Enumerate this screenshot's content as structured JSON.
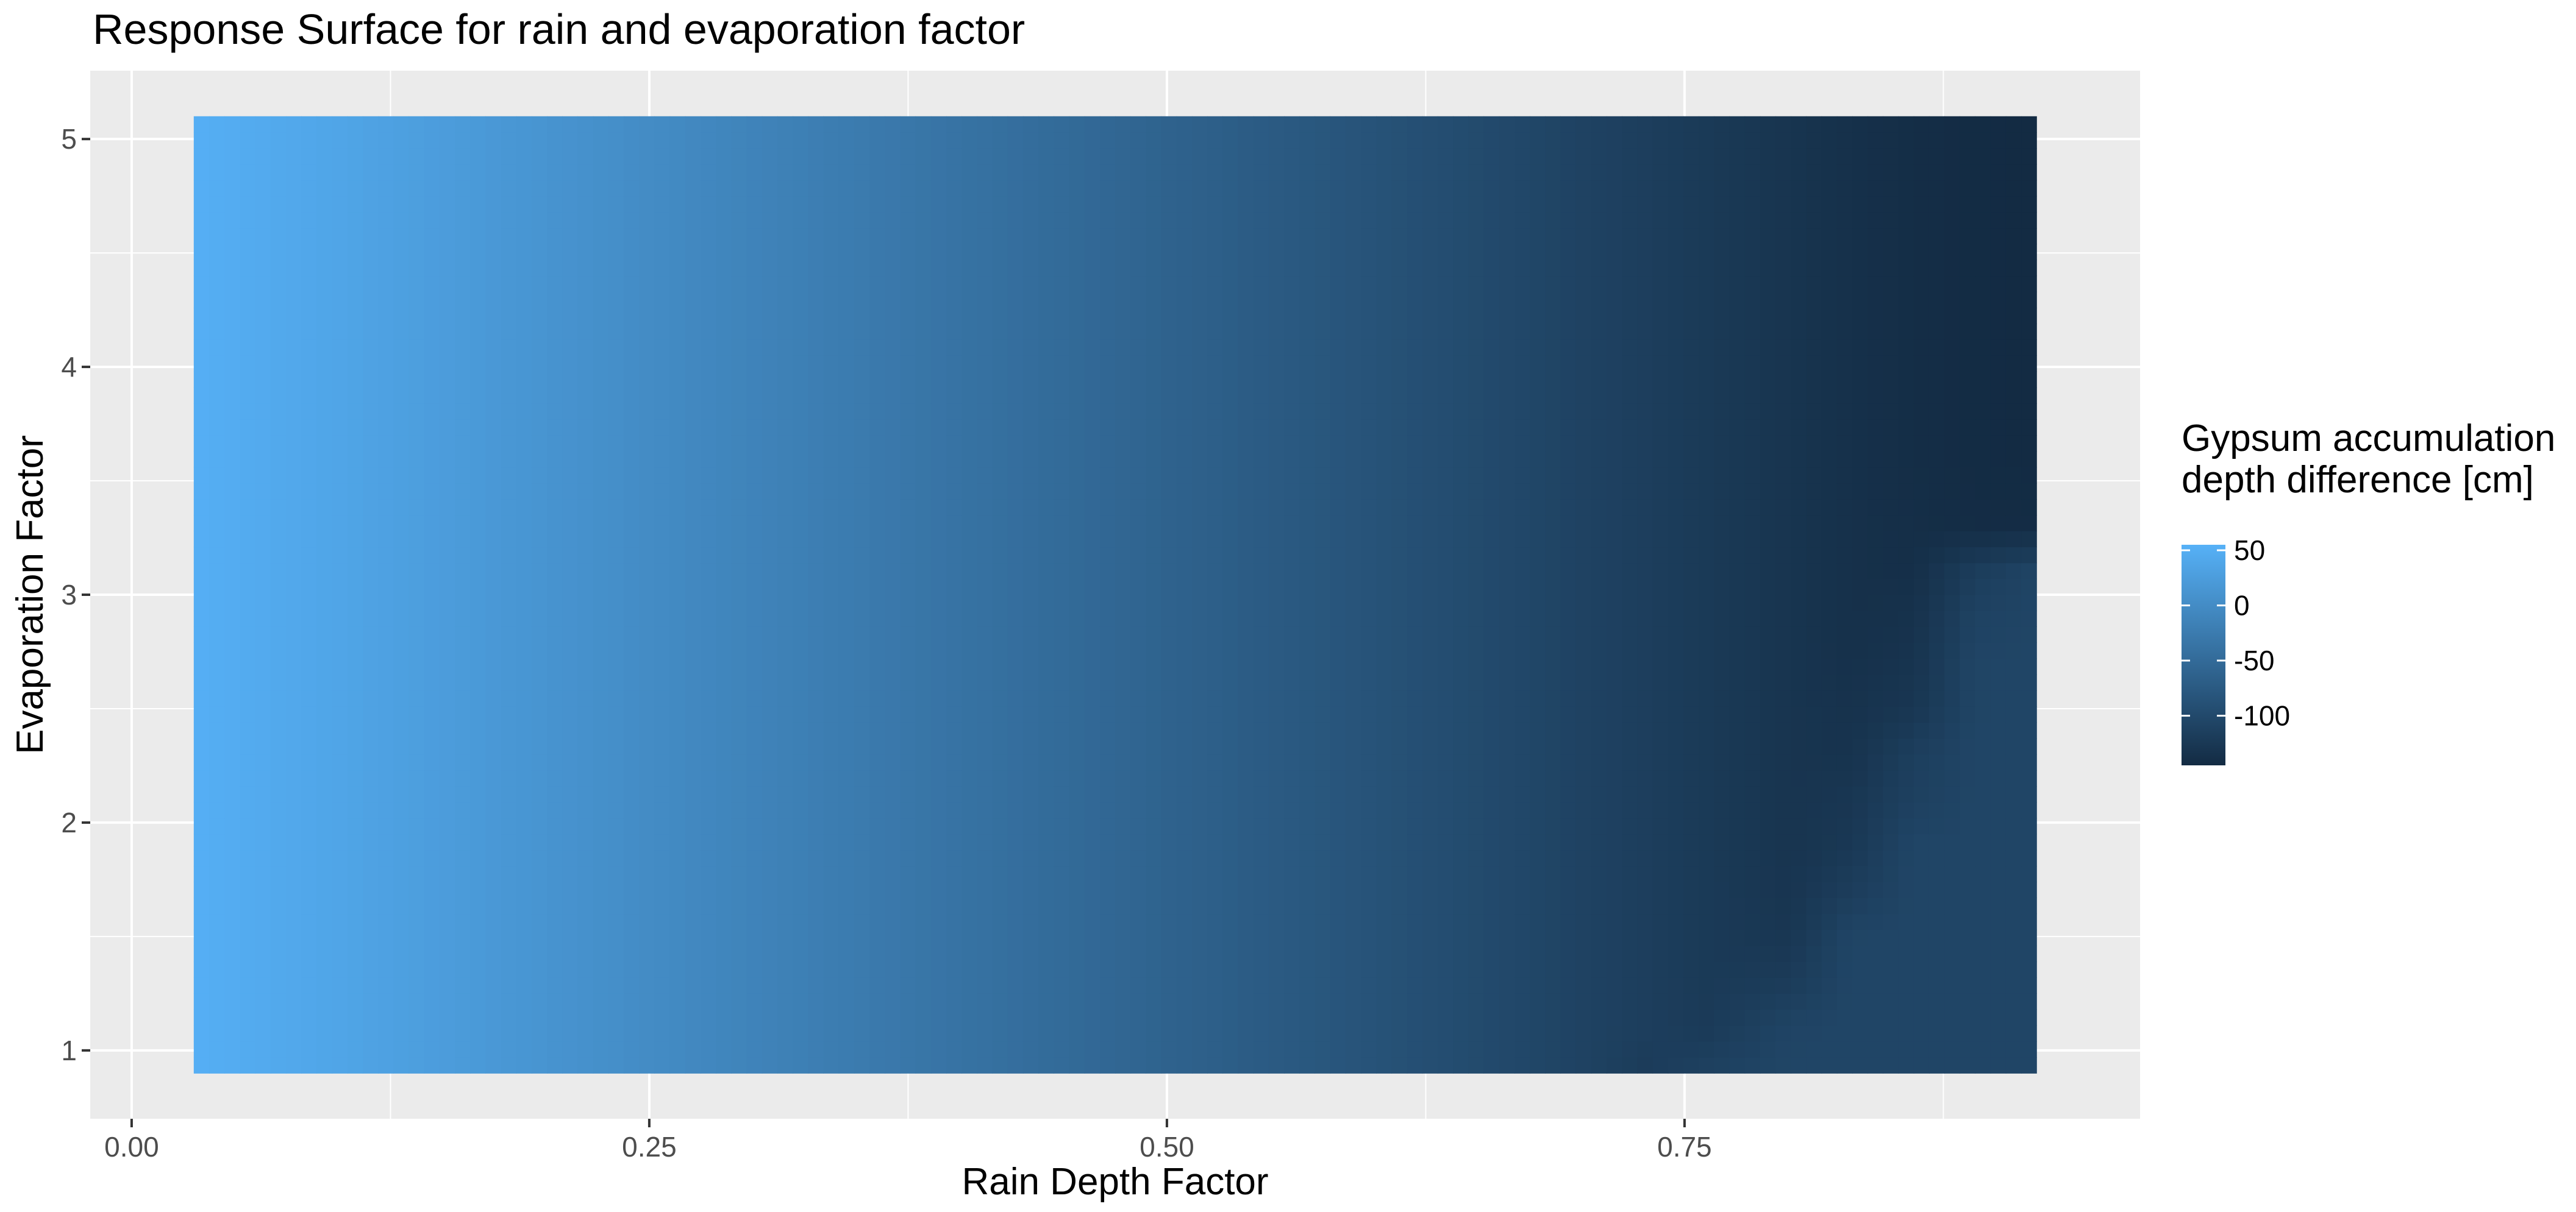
{
  "chart_data": {
    "type": "heatmap",
    "title": "Response Surface for rain and evaporation factor",
    "xlabel": "Rain Depth Factor",
    "ylabel": "Evaporation Factor",
    "xlim": [
      -0.02,
      0.97
    ],
    "ylim": [
      0.7,
      5.3
    ],
    "x_ticks": [
      0.0,
      0.25,
      0.5,
      0.75
    ],
    "x_tick_labels": [
      "0.00",
      "0.25",
      "0.50",
      "0.75"
    ],
    "y_ticks": [
      1,
      2,
      3,
      4,
      5
    ],
    "y_tick_labels": [
      "1",
      "2",
      "3",
      "4",
      "5"
    ],
    "grid": true,
    "tile_x_range": [
      0.03,
      0.92
    ],
    "tile_y_range": [
      0.9,
      5.1
    ],
    "x": [
      0.03,
      0.1,
      0.2,
      0.3,
      0.4,
      0.5,
      0.6,
      0.65,
      0.7,
      0.73,
      0.76,
      0.8,
      0.83,
      0.86,
      0.89,
      0.92
    ],
    "y": [
      0.9,
      1.1,
      1.3,
      1.5,
      1.7,
      1.9,
      2.1,
      2.3,
      2.5,
      2.7,
      2.9,
      3.1,
      3.3,
      3.6,
      4.0,
      4.5,
      5.1
    ],
    "z": [
      [
        52,
        37,
        12,
        -13,
        -38,
        -62,
        -86,
        -98,
        -110,
        -120,
        -112,
        -106,
        -106,
        -106,
        -106,
        -106
      ],
      [
        52,
        37,
        12,
        -13,
        -38,
        -62,
        -86,
        -98,
        -110,
        -116,
        -122,
        -108,
        -106,
        -106,
        -106,
        -106
      ],
      [
        52,
        37,
        12,
        -13,
        -38,
        -62,
        -86,
        -98,
        -110,
        -116,
        -123,
        -120,
        -106,
        -106,
        -106,
        -106
      ],
      [
        52,
        37,
        12,
        -13,
        -38,
        -62,
        -86,
        -98,
        -110,
        -116,
        -123,
        -128,
        -107,
        -106,
        -106,
        -106
      ],
      [
        52,
        37,
        12,
        -13,
        -38,
        -62,
        -86,
        -98,
        -110,
        -116,
        -123,
        -130,
        -118,
        -106,
        -106,
        -106
      ],
      [
        52,
        37,
        12,
        -13,
        -38,
        -62,
        -86,
        -98,
        -110,
        -116,
        -123,
        -131,
        -126,
        -106,
        -106,
        -106
      ],
      [
        52,
        37,
        12,
        -13,
        -38,
        -62,
        -86,
        -98,
        -110,
        -116,
        -123,
        -131,
        -128,
        -113,
        -106,
        -106
      ],
      [
        52,
        37,
        12,
        -13,
        -38,
        -62,
        -86,
        -98,
        -110,
        -116,
        -123,
        -131,
        -133,
        -116,
        -106,
        -106
      ],
      [
        52,
        37,
        12,
        -13,
        -38,
        -62,
        -86,
        -98,
        -110,
        -116,
        -123,
        -131,
        -134,
        -128,
        -107,
        -106
      ],
      [
        52,
        37,
        12,
        -13,
        -38,
        -62,
        -86,
        -98,
        -110,
        -116,
        -123,
        -131,
        -136,
        -132,
        -107,
        -106
      ],
      [
        52,
        37,
        12,
        -13,
        -38,
        -62,
        -86,
        -98,
        -110,
        -116,
        -123,
        -131,
        -137,
        -135,
        -110,
        -107
      ],
      [
        52,
        37,
        12,
        -13,
        -38,
        -62,
        -86,
        -98,
        -110,
        -116,
        -123,
        -131,
        -137,
        -139,
        -118,
        -107
      ],
      [
        52,
        37,
        12,
        -13,
        -38,
        -62,
        -86,
        -98,
        -110,
        -116,
        -123,
        -131,
        -137,
        -140,
        -143,
        -143
      ],
      [
        52,
        37,
        12,
        -13,
        -38,
        -62,
        -86,
        -98,
        -110,
        -116,
        -123,
        -131,
        -137,
        -141,
        -144,
        -145
      ],
      [
        52,
        37,
        12,
        -13,
        -38,
        -62,
        -86,
        -98,
        -110,
        -116,
        -123,
        -131,
        -137,
        -141,
        -144,
        -145
      ],
      [
        52,
        37,
        12,
        -13,
        -38,
        -62,
        -86,
        -98,
        -110,
        -116,
        -123,
        -131,
        -137,
        -141,
        -144,
        -145
      ],
      [
        52,
        37,
        12,
        -13,
        -38,
        -62,
        -86,
        -98,
        -110,
        -116,
        -123,
        -131,
        -137,
        -141,
        -144,
        -145
      ]
    ],
    "legend": {
      "title_lines": [
        "Gypsum accumulation",
        "depth difference [cm]"
      ],
      "position": "right",
      "value_range": [
        -145,
        55
      ],
      "breaks": [
        50,
        0,
        -50,
        -100
      ],
      "break_labels": [
        "50",
        "0",
        "-50",
        "-100"
      ],
      "color_low": "#132B43",
      "color_high": "#56B1F7"
    },
    "panel_background": "#EBEBEB",
    "grid_color": "#FFFFFF"
  }
}
